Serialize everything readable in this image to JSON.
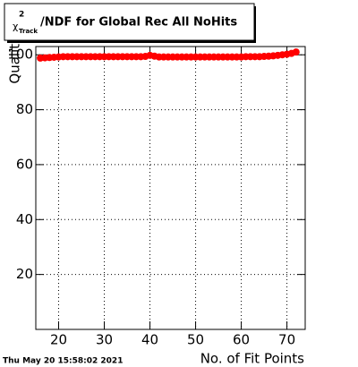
{
  "chart_data": {
    "type": "scatter",
    "title": {
      "symbol": "χ",
      "superscript": "2",
      "subscript": "Track",
      "text": "/NDF for Global Rec All NoHits"
    },
    "x_label": "No. of Fit Points",
    "y_label": "Quality",
    "timestamp": "Thu May 20 15:58:02 2021",
    "x": [
      16,
      17,
      18,
      19,
      20,
      21,
      22,
      23,
      24,
      25,
      26,
      27,
      28,
      29,
      30,
      31,
      32,
      33,
      34,
      35,
      36,
      37,
      38,
      39,
      40,
      41,
      42,
      43,
      44,
      45,
      46,
      47,
      48,
      49,
      50,
      51,
      52,
      53,
      54,
      55,
      56,
      57,
      58,
      59,
      60,
      61,
      62,
      63,
      64,
      65,
      66,
      67,
      68,
      69,
      70,
      71,
      72
    ],
    "series": [
      {
        "color": "#ff0000",
        "values": [
          98.8,
          98.9,
          99.0,
          99.1,
          99.2,
          99.3,
          99.3,
          99.3,
          99.3,
          99.3,
          99.3,
          99.3,
          99.3,
          99.3,
          99.3,
          99.3,
          99.3,
          99.3,
          99.3,
          99.3,
          99.3,
          99.3,
          99.3,
          99.4,
          99.8,
          99.5,
          99.2,
          99.2,
          99.2,
          99.2,
          99.2,
          99.2,
          99.2,
          99.2,
          99.2,
          99.2,
          99.2,
          99.2,
          99.2,
          99.2,
          99.2,
          99.2,
          99.2,
          99.2,
          99.2,
          99.3,
          99.3,
          99.3,
          99.3,
          99.4,
          99.5,
          99.6,
          99.8,
          100.0,
          100.2,
          100.5,
          101.0
        ]
      }
    ],
    "xlim": [
      15,
      74
    ],
    "ylim": [
      0,
      103
    ],
    "xticks": [
      20,
      30,
      40,
      50,
      60,
      70
    ],
    "yticks": [
      20,
      40,
      60,
      80,
      100
    ],
    "grid": true
  }
}
